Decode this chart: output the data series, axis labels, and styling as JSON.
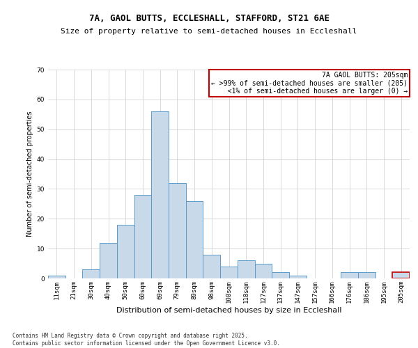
{
  "title1": "7A, GAOL BUTTS, ECCLESHALL, STAFFORD, ST21 6AE",
  "title2": "Size of property relative to semi-detached houses in Eccleshall",
  "xlabel": "Distribution of semi-detached houses by size in Eccleshall",
  "ylabel": "Number of semi-detached properties",
  "bar_labels": [
    "11sqm",
    "21sqm",
    "30sqm",
    "40sqm",
    "50sqm",
    "60sqm",
    "69sqm",
    "79sqm",
    "89sqm",
    "98sqm",
    "108sqm",
    "118sqm",
    "127sqm",
    "137sqm",
    "147sqm",
    "157sqm",
    "166sqm",
    "176sqm",
    "186sqm",
    "195sqm",
    "205sqm"
  ],
  "bar_values": [
    1,
    0,
    3,
    12,
    18,
    28,
    56,
    32,
    26,
    8,
    4,
    6,
    5,
    2,
    1,
    0,
    0,
    2,
    2,
    0,
    2
  ],
  "bar_color": "#c8d9ea",
  "bar_edge_color": "#5a9ac8",
  "highlight_index": 20,
  "highlight_bar_edge_color": "#c00000",
  "annotation_box_text": "7A GAOL BUTTS: 205sqm\n← >99% of semi-detached houses are smaller (205)\n  <1% of semi-detached houses are larger (0) →",
  "annotation_box_edge_color": "#c00000",
  "ylim": [
    0,
    70
  ],
  "yticks": [
    0,
    10,
    20,
    30,
    40,
    50,
    60,
    70
  ],
  "footer_text": "Contains HM Land Registry data © Crown copyright and database right 2025.\nContains public sector information licensed under the Open Government Licence v3.0.",
  "bg_color": "#ffffff",
  "grid_color": "#cccccc",
  "title1_fontsize": 9,
  "title2_fontsize": 8,
  "xlabel_fontsize": 8,
  "ylabel_fontsize": 7,
  "tick_fontsize": 6.5,
  "annotation_fontsize": 7,
  "footer_fontsize": 5.5
}
